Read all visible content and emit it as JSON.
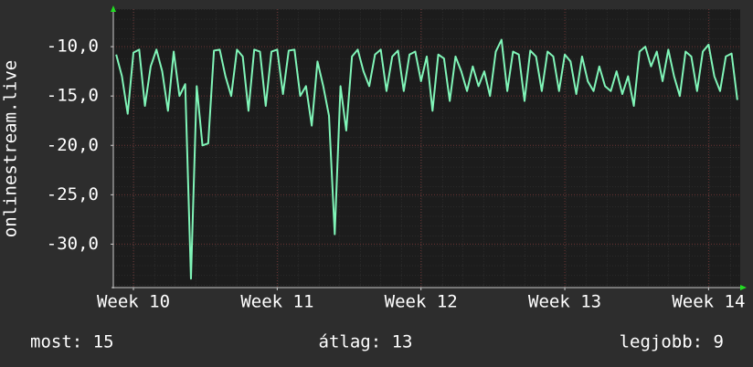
{
  "chart_data": {
    "type": "line",
    "y_label": "onlinestream.live",
    "color": "#80f5b8",
    "x": [
      9.88,
      9.92,
      9.96,
      10.0,
      10.04,
      10.08,
      10.12,
      10.16,
      10.2,
      10.24,
      10.28,
      10.32,
      10.36,
      10.4,
      10.44,
      10.48,
      10.52,
      10.56,
      10.6,
      10.64,
      10.68,
      10.72,
      10.76,
      10.8,
      10.84,
      10.88,
      10.92,
      10.96,
      11.0,
      11.04,
      11.08,
      11.12,
      11.16,
      11.2,
      11.24,
      11.28,
      11.32,
      11.36,
      11.4,
      11.44,
      11.48,
      11.52,
      11.56,
      11.6,
      11.64,
      11.68,
      11.72,
      11.76,
      11.8,
      11.84,
      11.88,
      11.92,
      11.96,
      12.0,
      12.04,
      12.08,
      12.12,
      12.16,
      12.2,
      12.24,
      12.28,
      12.32,
      12.36,
      12.4,
      12.44,
      12.48,
      12.52,
      12.56,
      12.6,
      12.64,
      12.68,
      12.72,
      12.76,
      12.8,
      12.84,
      12.88,
      12.92,
      12.96,
      13.0,
      13.04,
      13.08,
      13.12,
      13.16,
      13.2,
      13.24,
      13.28,
      13.32,
      13.36,
      13.4,
      13.44,
      13.48,
      13.52,
      13.56,
      13.6,
      13.64,
      13.68,
      13.72,
      13.76,
      13.8,
      13.84,
      13.88,
      13.92,
      13.96,
      14.0,
      14.04,
      14.08,
      14.12,
      14.16,
      14.2
    ],
    "values": [
      -10.8,
      -13,
      -16.8,
      -10.6,
      -10.3,
      -16,
      -12,
      -10.3,
      -12.5,
      -16.5,
      -10.5,
      -15,
      -13.8,
      -33.5,
      -14,
      -20,
      -19.8,
      -10.4,
      -10.3,
      -13,
      -15,
      -10.3,
      -11,
      -16.5,
      -10.3,
      -10.5,
      -16,
      -10.5,
      -10.3,
      -14.8,
      -10.4,
      -10.3,
      -15,
      -14,
      -18,
      -11.5,
      -14,
      -17,
      -29,
      -14,
      -18.5,
      -11,
      -10.3,
      -12.5,
      -14,
      -10.8,
      -10.3,
      -14.5,
      -11,
      -10.4,
      -14.5,
      -10.8,
      -10.5,
      -13.5,
      -11,
      -16.5,
      -10.8,
      -11.2,
      -15.5,
      -11,
      -12.5,
      -14.5,
      -12,
      -14,
      -12.5,
      -15,
      -10.5,
      -9.3,
      -14.5,
      -10.5,
      -10.8,
      -15.5,
      -10.4,
      -11,
      -14.5,
      -10.5,
      -11,
      -14.5,
      -10.8,
      -11.5,
      -14.8,
      -11,
      -13.5,
      -14.5,
      -12,
      -14,
      -14.5,
      -12.5,
      -14.8,
      -13,
      -16,
      -10.5,
      -10,
      -12,
      -10.5,
      -13.5,
      -10.3,
      -13,
      -15,
      -10.5,
      -11,
      -14.5,
      -10.5,
      -9.8,
      -13,
      -14.5,
      -11,
      -10.7,
      -15.4
    ],
    "xlim": [
      9.86,
      14.22
    ],
    "ylim": [
      -34.4,
      -6.2
    ],
    "xticks": [
      {
        "value": 10,
        "label": "Week 10"
      },
      {
        "value": 11,
        "label": "Week 11"
      },
      {
        "value": 12,
        "label": "Week 12"
      },
      {
        "value": 13,
        "label": "Week 13"
      },
      {
        "value": 14,
        "label": "Week 14"
      }
    ],
    "yticks": [
      {
        "value": -10,
        "label": "-10,0"
      },
      {
        "value": -15,
        "label": "-15,0"
      },
      {
        "value": -20,
        "label": "-20,0"
      },
      {
        "value": -25,
        "label": "-25,0"
      },
      {
        "value": -30,
        "label": "-30,0"
      }
    ],
    "grid": true,
    "annotations": [
      "most: 15",
      "átlag: 13",
      "legjobb: 9"
    ]
  }
}
